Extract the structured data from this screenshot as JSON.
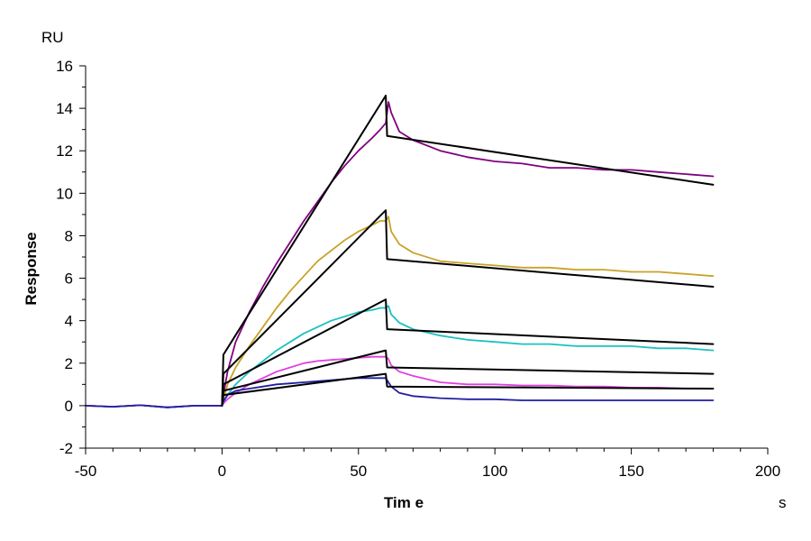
{
  "chart_data": {
    "type": "line",
    "title": "",
    "xlabel": "Tim e",
    "ylabel": "Response",
    "x_unit": "s",
    "y_unit": "RU",
    "xlim": [
      -50,
      200
    ],
    "ylim": [
      -2,
      16
    ],
    "x_ticks": [
      -50,
      0,
      50,
      100,
      150,
      200
    ],
    "x_tick_labels": [
      "-50",
      "0",
      "50",
      "100",
      "150",
      "200"
    ],
    "x_minor_ticks": [
      -40,
      -30,
      -20,
      -10,
      10,
      20,
      30,
      40,
      60,
      70,
      80,
      90,
      110,
      120,
      130,
      140,
      160,
      170,
      180,
      190
    ],
    "y_ticks": [
      -2,
      0,
      2,
      4,
      6,
      8,
      10,
      12,
      14,
      16
    ],
    "y_tick_labels": [
      "-2",
      "0",
      "2",
      "4",
      "6",
      "8",
      "10",
      "12",
      "14",
      "16"
    ],
    "y_minor_ticks": [
      -1,
      1,
      3,
      5,
      7,
      9,
      11,
      13,
      15
    ],
    "grid": false,
    "legend": "none",
    "series": [
      {
        "kind": "measured",
        "color": "#800080",
        "x": [
          -50,
          -40,
          -30,
          -20,
          -10,
          0,
          0.5,
          2,
          5,
          10,
          15,
          20,
          25,
          30,
          35,
          40,
          45,
          50,
          55,
          58,
          60,
          61,
          62,
          65,
          70,
          80,
          90,
          100,
          110,
          120,
          130,
          140,
          150,
          160,
          170,
          180
        ],
        "y": [
          0,
          -0.05,
          0.02,
          -0.08,
          0,
          0,
          0.5,
          1.6,
          3.0,
          4.4,
          5.6,
          6.7,
          7.7,
          8.7,
          9.6,
          10.5,
          11.3,
          12.0,
          12.6,
          13.0,
          13.3,
          14.3,
          13.8,
          12.9,
          12.5,
          12.0,
          11.7,
          11.5,
          11.4,
          11.2,
          11.2,
          11.1,
          11.1,
          11.0,
          10.9,
          10.8
        ]
      },
      {
        "kind": "measured",
        "color": "#C9A227",
        "x": [
          -50,
          -40,
          -30,
          -20,
          -10,
          0,
          0.5,
          2,
          5,
          10,
          15,
          20,
          25,
          30,
          35,
          40,
          45,
          50,
          55,
          58,
          60,
          61,
          62,
          65,
          70,
          80,
          90,
          100,
          110,
          120,
          130,
          140,
          150,
          160,
          170,
          180
        ],
        "y": [
          0,
          -0.05,
          0.02,
          -0.08,
          0,
          0,
          0.3,
          1.0,
          1.8,
          2.8,
          3.7,
          4.6,
          5.4,
          6.1,
          6.8,
          7.3,
          7.8,
          8.2,
          8.5,
          8.7,
          8.7,
          8.9,
          8.2,
          7.6,
          7.2,
          6.8,
          6.7,
          6.6,
          6.5,
          6.5,
          6.4,
          6.4,
          6.3,
          6.3,
          6.2,
          6.1
        ]
      },
      {
        "kind": "measured",
        "color": "#1FC0C0",
        "x": [
          -50,
          -40,
          -30,
          -20,
          -10,
          0,
          0.5,
          2,
          5,
          10,
          15,
          20,
          25,
          30,
          35,
          40,
          45,
          50,
          55,
          58,
          60,
          61,
          62,
          65,
          70,
          80,
          90,
          100,
          110,
          120,
          130,
          140,
          150,
          160,
          170,
          180
        ],
        "y": [
          0,
          -0.05,
          0.02,
          -0.08,
          0,
          0,
          0.2,
          0.5,
          1.0,
          1.6,
          2.1,
          2.6,
          3.0,
          3.4,
          3.7,
          4.0,
          4.2,
          4.4,
          4.5,
          4.6,
          4.6,
          4.7,
          4.3,
          3.9,
          3.6,
          3.3,
          3.1,
          3.0,
          2.9,
          2.9,
          2.8,
          2.8,
          2.8,
          2.7,
          2.7,
          2.6
        ]
      },
      {
        "kind": "measured",
        "color": "#E040E0",
        "x": [
          -50,
          -40,
          -30,
          -20,
          -10,
          0,
          0.5,
          2,
          5,
          10,
          15,
          20,
          25,
          30,
          35,
          40,
          45,
          50,
          55,
          58,
          60,
          61,
          62,
          65,
          70,
          80,
          90,
          100,
          110,
          120,
          130,
          140,
          150,
          160,
          170,
          180
        ],
        "y": [
          0,
          -0.05,
          0.02,
          -0.08,
          0,
          0,
          0.1,
          0.3,
          0.6,
          1.0,
          1.3,
          1.6,
          1.8,
          2.0,
          2.1,
          2.15,
          2.2,
          2.25,
          2.3,
          2.3,
          2.3,
          2.2,
          1.9,
          1.6,
          1.4,
          1.1,
          1.0,
          1.0,
          0.95,
          0.95,
          0.9,
          0.9,
          0.85,
          0.85,
          0.8,
          0.8
        ]
      },
      {
        "kind": "measured",
        "color": "#1F1FA0",
        "x": [
          -50,
          -40,
          -30,
          -20,
          -10,
          0,
          0.5,
          2,
          5,
          10,
          15,
          20,
          25,
          30,
          35,
          40,
          45,
          50,
          55,
          58,
          60,
          61,
          62,
          65,
          70,
          80,
          90,
          100,
          110,
          120,
          130,
          140,
          150,
          160,
          170,
          180
        ],
        "y": [
          0,
          -0.05,
          0.02,
          -0.08,
          0,
          0,
          0.2,
          0.5,
          0.7,
          0.8,
          0.9,
          1.0,
          1.05,
          1.1,
          1.15,
          1.2,
          1.25,
          1.3,
          1.3,
          1.3,
          1.3,
          1.1,
          0.9,
          0.6,
          0.45,
          0.35,
          0.3,
          0.3,
          0.25,
          0.25,
          0.25,
          0.25,
          0.25,
          0.25,
          0.25,
          0.25
        ]
      },
      {
        "kind": "fit",
        "color": "#000000",
        "x": [
          0,
          0.5,
          60,
          60.5,
          180
        ],
        "y": [
          0,
          2.4,
          14.6,
          12.7,
          10.4
        ]
      },
      {
        "kind": "fit",
        "color": "#000000",
        "x": [
          0,
          0.5,
          60,
          60.5,
          180
        ],
        "y": [
          0,
          1.5,
          9.2,
          6.9,
          5.6
        ]
      },
      {
        "kind": "fit",
        "color": "#000000",
        "x": [
          0,
          0.5,
          60,
          60.5,
          180
        ],
        "y": [
          0,
          1.0,
          5.0,
          3.6,
          2.9
        ]
      },
      {
        "kind": "fit",
        "color": "#000000",
        "x": [
          0,
          0.5,
          60,
          60.5,
          180
        ],
        "y": [
          0,
          0.7,
          2.6,
          1.8,
          1.5
        ]
      },
      {
        "kind": "fit",
        "color": "#000000",
        "x": [
          0,
          0.5,
          60,
          60.5,
          180
        ],
        "y": [
          0,
          0.5,
          1.5,
          0.9,
          0.8
        ]
      }
    ]
  }
}
